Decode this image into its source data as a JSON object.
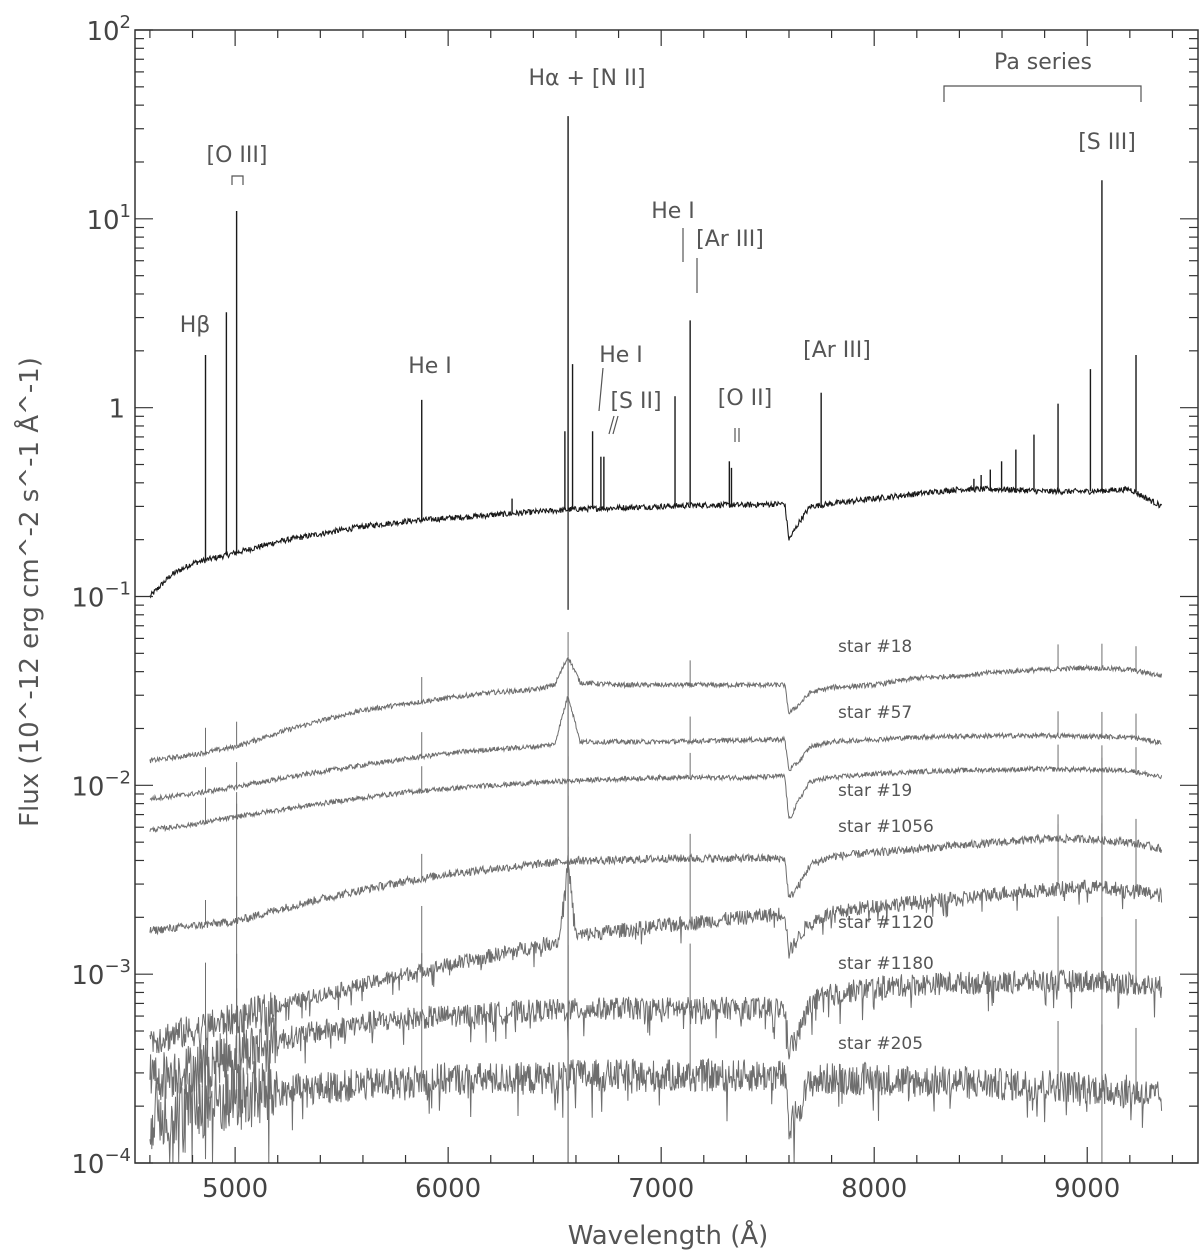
{
  "chart_data": {
    "type": "line",
    "xlabel": "Wavelength (Å)",
    "ylabel": "Flux (10^-12 erg cm^-2 s^-1 Å^-1)",
    "xlim": [
      4530,
      9520
    ],
    "ylim": [
      0.0001,
      100
    ],
    "yscale": "log",
    "grid": false,
    "x_ticks": [
      5000,
      6000,
      7000,
      8000,
      9000
    ],
    "x_tick_labels": [
      "5000",
      "6000",
      "7000",
      "8000",
      "9000"
    ],
    "y_ticks": [
      0.0001,
      0.001,
      0.01,
      0.1,
      1,
      10,
      100
    ],
    "y_tick_labels": [
      {
        "base": "10",
        "exp": "−4"
      },
      {
        "base": "10",
        "exp": "−3"
      },
      {
        "base": "10",
        "exp": "−2"
      },
      {
        "base": "10",
        "exp": "−1"
      },
      {
        "base": "1",
        "exp": ""
      },
      {
        "base": "10",
        "exp": "1"
      },
      {
        "base": "10",
        "exp": "2"
      }
    ],
    "line_annotations": [
      {
        "text": "Hβ",
        "x": 4861
      },
      {
        "text": "[O III]",
        "x": 5007
      },
      {
        "text": "He I",
        "x": 5876
      },
      {
        "text": "Hα + [N II]",
        "x": 6563
      },
      {
        "text": "He I",
        "x": 6678
      },
      {
        "text": "[S II]",
        "x": 6724
      },
      {
        "text": "He I",
        "x": 7065
      },
      {
        "text": "[Ar III]",
        "x": 7136
      },
      {
        "text": "[O II]",
        "x": 7325
      },
      {
        "text": "[Ar III]",
        "x": 7751
      },
      {
        "text": "Pa series",
        "x": 8760
      },
      {
        "text": "[S III]",
        "x": 9069
      }
    ],
    "nebula_emission_lines": [
      {
        "x": 4861,
        "peak": 1.9
      },
      {
        "x": 4959,
        "peak": 3.2
      },
      {
        "x": 5007,
        "peak": 11.0
      },
      {
        "x": 5876,
        "peak": 1.1
      },
      {
        "x": 6300,
        "peak": 0.33
      },
      {
        "x": 6548,
        "peak": 0.75
      },
      {
        "x": 6563,
        "peak": 35.0
      },
      {
        "x": 6584,
        "peak": 1.7
      },
      {
        "x": 6678,
        "peak": 0.75
      },
      {
        "x": 6717,
        "peak": 0.55
      },
      {
        "x": 6731,
        "peak": 0.55
      },
      {
        "x": 7065,
        "peak": 1.15
      },
      {
        "x": 7136,
        "peak": 2.9
      },
      {
        "x": 7320,
        "peak": 0.52
      },
      {
        "x": 7330,
        "peak": 0.48
      },
      {
        "x": 7751,
        "peak": 1.2
      },
      {
        "x": 8468,
        "peak": 0.42
      },
      {
        "x": 8502,
        "peak": 0.44
      },
      {
        "x": 8545,
        "peak": 0.47
      },
      {
        "x": 8598,
        "peak": 0.52
      },
      {
        "x": 8665,
        "peak": 0.6
      },
      {
        "x": 8750,
        "peak": 0.72
      },
      {
        "x": 8863,
        "peak": 1.05
      },
      {
        "x": 9015,
        "peak": 1.6
      },
      {
        "x": 9069,
        "peak": 16.0
      },
      {
        "x": 9229,
        "peak": 1.9
      }
    ],
    "series": [
      {
        "type": "nebula",
        "x": [
          4600,
          4700,
          4800,
          5000,
          5200,
          5400,
          5600,
          5800,
          6000,
          6200,
          6400,
          6600,
          6800,
          7000,
          7200,
          7400,
          7580,
          7600,
          7650,
          7700,
          7800,
          8000,
          8200,
          8400,
          8600,
          8800,
          9000,
          9200,
          9350
        ],
        "y": [
          0.1,
          0.13,
          0.15,
          0.17,
          0.195,
          0.215,
          0.235,
          0.25,
          0.26,
          0.27,
          0.28,
          0.29,
          0.295,
          0.3,
          0.305,
          0.305,
          0.31,
          0.2,
          0.25,
          0.3,
          0.31,
          0.33,
          0.35,
          0.37,
          0.37,
          0.36,
          0.36,
          0.37,
          0.3
        ]
      },
      {
        "name": "star #18",
        "x": [
          4600,
          4800,
          5000,
          5200,
          5400,
          5600,
          5800,
          6000,
          6200,
          6400,
          6500,
          6563,
          6620,
          6800,
          7000,
          7200,
          7400,
          7580,
          7600,
          7650,
          7700,
          7800,
          8000,
          8200,
          8400,
          8600,
          8800,
          9000,
          9200,
          9350
        ],
        "y": [
          0.0135,
          0.0145,
          0.016,
          0.019,
          0.022,
          0.025,
          0.027,
          0.029,
          0.031,
          0.032,
          0.034,
          0.048,
          0.035,
          0.034,
          0.034,
          0.034,
          0.034,
          0.034,
          0.024,
          0.027,
          0.031,
          0.033,
          0.034,
          0.037,
          0.038,
          0.04,
          0.041,
          0.042,
          0.041,
          0.038
        ]
      },
      {
        "name": "star #57",
        "x": [
          4600,
          4800,
          5000,
          5200,
          5400,
          5600,
          5800,
          6000,
          6200,
          6400,
          6500,
          6563,
          6620,
          6800,
          7000,
          7200,
          7400,
          7580,
          7600,
          7650,
          7700,
          7800,
          8000,
          8200,
          8400,
          8600,
          8800,
          9000,
          9200,
          9350
        ],
        "y": [
          0.0085,
          0.009,
          0.0098,
          0.0108,
          0.0118,
          0.0128,
          0.0138,
          0.0148,
          0.0155,
          0.016,
          0.0165,
          0.03,
          0.017,
          0.017,
          0.017,
          0.0172,
          0.0174,
          0.0175,
          0.012,
          0.0135,
          0.016,
          0.017,
          0.0175,
          0.018,
          0.0182,
          0.0183,
          0.0183,
          0.0182,
          0.018,
          0.0168
        ]
      },
      {
        "name": "star #19",
        "x": [
          4600,
          4800,
          5000,
          5200,
          5400,
          5600,
          5800,
          6000,
          6200,
          6400,
          6600,
          6800,
          7000,
          7200,
          7400,
          7580,
          7600,
          7650,
          7700,
          7800,
          8000,
          8200,
          8400,
          8600,
          8800,
          9000,
          9200,
          9350
        ],
        "y": [
          0.0058,
          0.0062,
          0.0068,
          0.0074,
          0.008,
          0.0086,
          0.0092,
          0.0096,
          0.01,
          0.0103,
          0.0106,
          0.0108,
          0.011,
          0.011,
          0.011,
          0.0112,
          0.0065,
          0.0085,
          0.0105,
          0.011,
          0.0115,
          0.0118,
          0.012,
          0.0121,
          0.0122,
          0.0121,
          0.012,
          0.011
        ]
      },
      {
        "name": "star #1056",
        "x": [
          4600,
          4800,
          5000,
          5200,
          5400,
          5600,
          5800,
          6000,
          6200,
          6400,
          6600,
          6800,
          7000,
          7200,
          7400,
          7580,
          7600,
          7650,
          7700,
          7800,
          8000,
          8200,
          8400,
          8600,
          8800,
          9000,
          9200,
          9350
        ],
        "y": [
          0.0017,
          0.0018,
          0.0019,
          0.0022,
          0.0025,
          0.0028,
          0.0031,
          0.0034,
          0.0036,
          0.0038,
          0.004,
          0.004,
          0.0041,
          0.0041,
          0.0041,
          0.0041,
          0.0025,
          0.003,
          0.0038,
          0.0042,
          0.0044,
          0.0046,
          0.0048,
          0.005,
          0.0052,
          0.0052,
          0.005,
          0.0046
        ]
      },
      {
        "name": "star #1120",
        "x": [
          4600,
          4800,
          5000,
          5200,
          5400,
          5600,
          5800,
          6000,
          6200,
          6400,
          6520,
          6563,
          6600,
          6800,
          7000,
          7200,
          7400,
          7580,
          7600,
          7650,
          7700,
          7800,
          8000,
          8200,
          8400,
          8600,
          8800,
          9000,
          9200,
          9350
        ],
        "y": [
          0.00045,
          0.0005,
          0.00058,
          0.00068,
          0.00078,
          0.00088,
          0.001,
          0.00112,
          0.00125,
          0.0014,
          0.0015,
          0.004,
          0.0016,
          0.0017,
          0.0018,
          0.0019,
          0.002,
          0.0021,
          0.0013,
          0.0016,
          0.0019,
          0.0021,
          0.0023,
          0.0024,
          0.0025,
          0.0027,
          0.0028,
          0.0029,
          0.0028,
          0.0026
        ]
      },
      {
        "name": "star #1180",
        "x": [
          4600,
          4800,
          5000,
          5200,
          5400,
          5600,
          5800,
          6000,
          6200,
          6400,
          6600,
          6800,
          7000,
          7200,
          7400,
          7580,
          7600,
          7650,
          7700,
          7800,
          8000,
          8200,
          8400,
          8600,
          8800,
          9000,
          9200,
          9350
        ],
        "y": [
          0.00028,
          0.00032,
          0.00038,
          0.00045,
          0.0005,
          0.00055,
          0.00058,
          0.0006,
          0.00062,
          0.00064,
          0.00065,
          0.00066,
          0.00066,
          0.00066,
          0.00066,
          0.00066,
          0.0004,
          0.0005,
          0.0007,
          0.00078,
          0.00085,
          0.00088,
          0.0009,
          0.0009,
          0.00092,
          0.00092,
          0.0009,
          0.00085
        ]
      },
      {
        "name": "star #205",
        "x": [
          4600,
          4800,
          5000,
          5200,
          5400,
          5600,
          5800,
          6000,
          6200,
          6400,
          6600,
          6800,
          7000,
          7200,
          7400,
          7580,
          7600,
          7650,
          7700,
          7800,
          8000,
          8200,
          8400,
          8600,
          8800,
          9000,
          9200,
          9350
        ],
        "y": [
          0.00018,
          0.0002,
          0.00022,
          0.00024,
          0.00025,
          0.00026,
          0.00027,
          0.00028,
          0.00028,
          0.00028,
          0.00029,
          0.00029,
          0.00029,
          0.00029,
          0.00029,
          0.00029,
          0.00015,
          0.0002,
          0.00027,
          0.00028,
          0.00028,
          0.00027,
          0.00027,
          0.00026,
          0.00026,
          0.00025,
          0.00024,
          0.00022
        ]
      }
    ]
  },
  "colors": {
    "nebula": "#1a1a1a",
    "stars": "#6e6e6e",
    "axis": "#333333",
    "annotation": "#555555"
  }
}
